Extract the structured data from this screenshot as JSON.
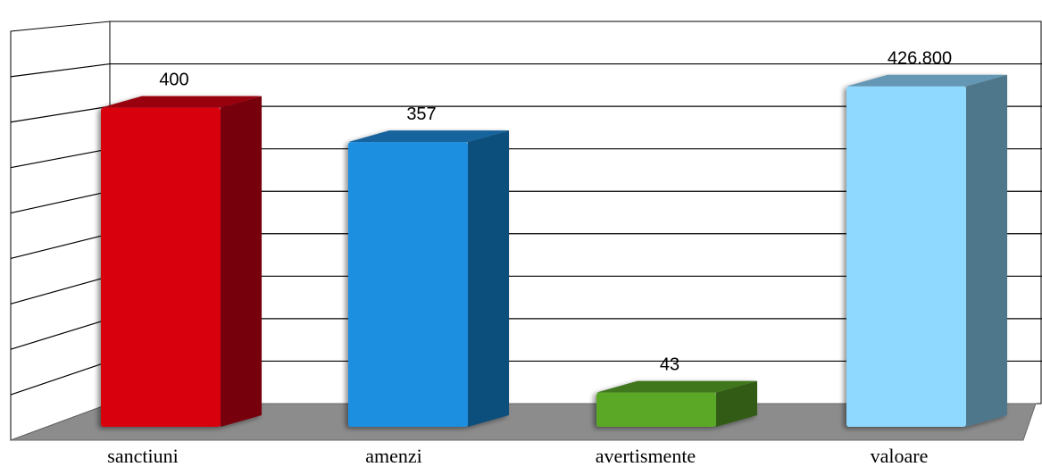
{
  "chart_data": {
    "type": "bar",
    "style": "3d-column",
    "title": "",
    "xlabel": "",
    "ylabel": "",
    "grid": true,
    "legend": "none",
    "categories": [
      "sanctiuni",
      "amenzi",
      "avertismente",
      "valoare"
    ],
    "values": [
      400,
      357,
      43,
      426.8
    ],
    "value_labels": [
      "400",
      "357",
      "43",
      "426.800"
    ],
    "ylim": [
      0,
      450
    ],
    "gridline_count": 9,
    "colors": [
      "#d9000c",
      "#1b8fe0",
      "#5aa826",
      "#8fd8ff"
    ]
  }
}
